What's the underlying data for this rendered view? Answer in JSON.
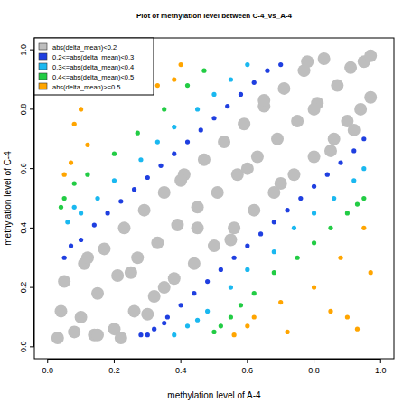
{
  "chart_data": {
    "type": "scatter",
    "title": "Plot of methylation level between C-4_vs_A-4",
    "x_label": "methylation level of A-4",
    "y_label": "methylation level of C-4",
    "xlim": [
      -0.04,
      1.04
    ],
    "ylim": [
      -0.04,
      1.04
    ],
    "xticks": [
      {
        "value": 0,
        "label": "0.0"
      },
      0.2,
      0.4,
      0.6,
      0.8,
      {
        "value": 1,
        "label": "1.0"
      }
    ],
    "yticks": [
      {
        "value": 0,
        "label": "0.0"
      },
      0.2,
      0.4,
      0.6,
      0.8,
      {
        "value": 1,
        "label": "1.0"
      }
    ],
    "legend": "top-left",
    "marker": "circle",
    "grid": false,
    "series": [
      {
        "name": "abs(delta_mean)<0.2",
        "color": "#bebebe",
        "x": [
          0.03,
          0.04,
          0.05,
          0.08,
          0.1,
          0.11,
          0.14,
          0.15,
          0.17,
          0.2,
          0.21,
          0.23,
          0.26,
          0.27,
          0.29,
          0.32,
          0.33,
          0.35,
          0.38,
          0.39,
          0.41,
          0.44,
          0.45,
          0.47,
          0.5,
          0.51,
          0.53,
          0.56,
          0.57,
          0.59,
          0.62,
          0.63,
          0.65,
          0.68,
          0.69,
          0.71,
          0.74,
          0.75,
          0.77,
          0.8,
          0.81,
          0.83,
          0.86,
          0.87,
          0.9,
          0.91,
          0.94,
          0.95,
          0.97,
          0.97,
          0.35,
          0.6,
          0.25,
          0.8,
          0.45,
          0.15,
          0.3,
          0.55,
          0.7,
          0.85,
          0.12,
          0.4,
          0.65,
          0.78,
          0.22,
          0.92
        ],
        "values": [
          0.03,
          0.12,
          0.22,
          0.05,
          0.1,
          0.28,
          0.04,
          0.18,
          0.33,
          0.06,
          0.24,
          0.4,
          0.12,
          0.3,
          0.46,
          0.17,
          0.35,
          0.52,
          0.23,
          0.41,
          0.58,
          0.28,
          0.47,
          0.63,
          0.34,
          0.52,
          0.69,
          0.4,
          0.58,
          0.75,
          0.46,
          0.64,
          0.81,
          0.52,
          0.7,
          0.87,
          0.58,
          0.76,
          0.93,
          0.64,
          0.82,
          0.97,
          0.7,
          0.88,
          0.76,
          0.94,
          0.8,
          0.96,
          0.84,
          0.98,
          0.2,
          0.6,
          0.25,
          0.8,
          0.4,
          0.04,
          0.11,
          0.36,
          0.55,
          0.66,
          0.3,
          0.56,
          0.83,
          0.96,
          0.03,
          0.73
        ]
      },
      {
        "name": "0.2<=abs(delta_mean)<0.3",
        "color": "#1f3fe0",
        "x": [
          0.05,
          0.07,
          0.1,
          0.14,
          0.18,
          0.22,
          0.26,
          0.3,
          0.34,
          0.38,
          0.42,
          0.46,
          0.5,
          0.54,
          0.58,
          0.62,
          0.66,
          0.7,
          0.28,
          0.32,
          0.36,
          0.4,
          0.44,
          0.48,
          0.52,
          0.56,
          0.6,
          0.64,
          0.68,
          0.72,
          0.76,
          0.8,
          0.84,
          0.88,
          0.92,
          0.95,
          0.3,
          0.35
        ],
        "values": [
          0.3,
          0.34,
          0.36,
          0.41,
          0.45,
          0.49,
          0.53,
          0.57,
          0.61,
          0.65,
          0.69,
          0.73,
          0.77,
          0.81,
          0.85,
          0.89,
          0.93,
          0.95,
          0.04,
          0.06,
          0.1,
          0.14,
          0.18,
          0.22,
          0.26,
          0.3,
          0.34,
          0.38,
          0.42,
          0.46,
          0.5,
          0.54,
          0.58,
          0.62,
          0.66,
          0.7,
          0.04,
          0.08
        ]
      },
      {
        "name": "0.3<=abs(delta_mean)<0.4",
        "color": "#1ab8f0",
        "x": [
          0.06,
          0.1,
          0.15,
          0.2,
          0.28,
          0.33,
          0.38,
          0.45,
          0.5,
          0.55,
          0.6,
          0.08,
          0.38,
          0.42,
          0.48,
          0.55,
          0.6,
          0.68,
          0.74,
          0.8,
          0.86,
          0.92,
          0.95,
          0.45
        ],
        "values": [
          0.42,
          0.45,
          0.5,
          0.56,
          0.63,
          0.69,
          0.74,
          0.8,
          0.85,
          0.9,
          0.95,
          0.47,
          0.04,
          0.07,
          0.12,
          0.2,
          0.26,
          0.32,
          0.4,
          0.45,
          0.5,
          0.56,
          0.6,
          0.09
        ]
      },
      {
        "name": "0.4<=abs(delta_mean)<0.5",
        "color": "#22cc44",
        "x": [
          0.05,
          0.08,
          0.12,
          0.2,
          0.27,
          0.35,
          0.42,
          0.47,
          0.04,
          0.5,
          0.55,
          0.58,
          0.62,
          0.68,
          0.75,
          0.85,
          0.9,
          0.95,
          0.93,
          0.8,
          0.52
        ],
        "values": [
          0.5,
          0.55,
          0.58,
          0.65,
          0.72,
          0.8,
          0.88,
          0.93,
          0.47,
          0.05,
          0.1,
          0.14,
          0.18,
          0.25,
          0.3,
          0.4,
          0.45,
          0.5,
          0.48,
          0.35,
          0.07
        ]
      },
      {
        "name": "abs(delta_mean)>=0.5",
        "color": "#ffa500",
        "x": [
          0.07,
          0.08,
          0.1,
          0.12,
          0.05,
          0.38,
          0.33,
          0.4,
          0.56,
          0.6,
          0.62,
          0.7,
          0.8,
          0.85,
          0.9,
          0.93,
          0.97,
          0.95,
          0.72,
          0.88
        ],
        "values": [
          0.62,
          0.75,
          0.8,
          0.68,
          0.58,
          0.9,
          0.88,
          0.95,
          0.04,
          0.07,
          0.1,
          0.15,
          0.2,
          0.12,
          0.1,
          0.06,
          0.25,
          0.4,
          0.05,
          0.3
        ]
      }
    ]
  }
}
